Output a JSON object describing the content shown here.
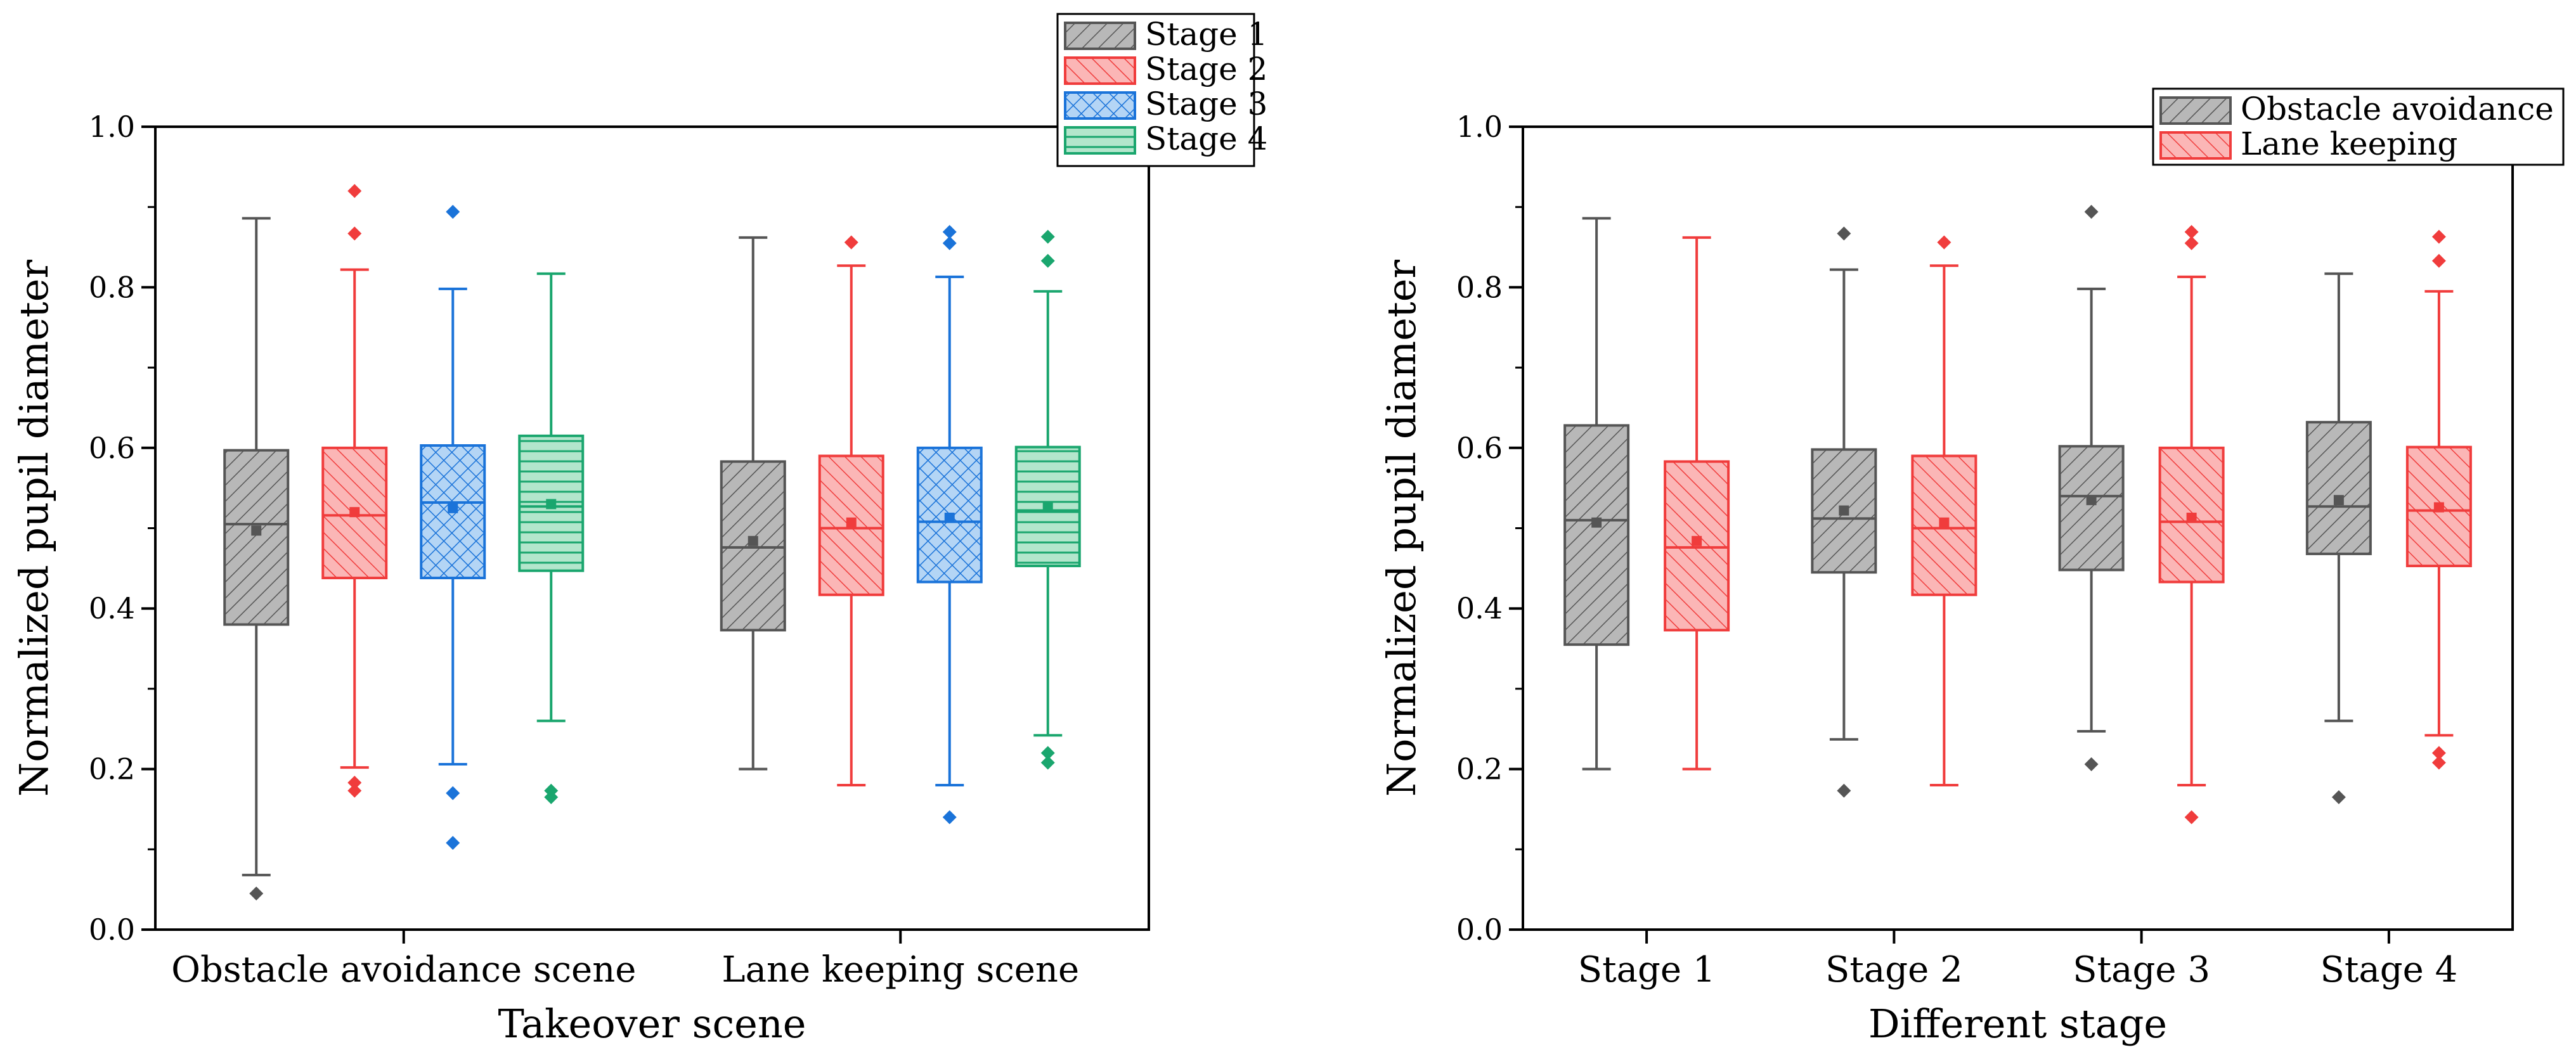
{
  "chart_data": [
    {
      "type": "box",
      "title": "",
      "xlabel": "Takeover scene",
      "ylabel": "Normalized pupil diameter",
      "ylim": [
        0.0,
        1.0
      ],
      "yticks": [
        "0.0",
        "0.2",
        "0.4",
        "0.6",
        "0.8",
        "1.0"
      ],
      "legend_position": "top-right",
      "categories": [
        "Obstacle avoidance scene",
        "Lane keeping scene"
      ],
      "series": [
        {
          "name": "Stage 1",
          "color": "#555555",
          "fill": "#b8b8b8",
          "pattern": "diag",
          "boxes": [
            {
              "whisker_low": 0.068,
              "q1": 0.38,
              "median": 0.505,
              "q3": 0.597,
              "whisker_high": 0.886,
              "mean": 0.497,
              "outliers": [
                0.045
              ]
            },
            {
              "whisker_low": 0.2,
              "q1": 0.373,
              "median": 0.476,
              "q3": 0.583,
              "whisker_high": 0.862,
              "mean": 0.484,
              "outliers": []
            }
          ]
        },
        {
          "name": "Stage 2",
          "color": "#f03c3c",
          "fill": "#fbb6b6",
          "pattern": "diag2",
          "boxes": [
            {
              "whisker_low": 0.202,
              "q1": 0.438,
              "median": 0.516,
              "q3": 0.6,
              "whisker_high": 0.822,
              "mean": 0.52,
              "outliers": [
                0.183,
                0.173,
                0.867,
                0.92
              ]
            },
            {
              "whisker_low": 0.18,
              "q1": 0.417,
              "median": 0.5,
              "q3": 0.59,
              "whisker_high": 0.827,
              "mean": 0.507,
              "outliers": [
                0.856
              ]
            }
          ]
        },
        {
          "name": "Stage 3",
          "color": "#1a73d9",
          "fill": "#b4d5f5",
          "pattern": "cross",
          "boxes": [
            {
              "whisker_low": 0.206,
              "q1": 0.438,
              "median": 0.532,
              "q3": 0.603,
              "whisker_high": 0.798,
              "mean": 0.525,
              "outliers": [
                0.17,
                0.108,
                0.894
              ]
            },
            {
              "whisker_low": 0.18,
              "q1": 0.433,
              "median": 0.508,
              "q3": 0.6,
              "whisker_high": 0.813,
              "mean": 0.513,
              "outliers": [
                0.14,
                0.855,
                0.869
              ]
            }
          ]
        },
        {
          "name": "Stage 4",
          "color": "#1aa66e",
          "fill": "#b3e6cc",
          "pattern": "horiz",
          "boxes": [
            {
              "whisker_low": 0.26,
              "q1": 0.447,
              "median": 0.527,
              "q3": 0.615,
              "whisker_high": 0.817,
              "mean": 0.53,
              "outliers": [
                0.173,
                0.165
              ]
            },
            {
              "whisker_low": 0.242,
              "q1": 0.453,
              "median": 0.522,
              "q3": 0.601,
              "whisker_high": 0.795,
              "mean": 0.526,
              "outliers": [
                0.22,
                0.208,
                0.833,
                0.863
              ]
            }
          ]
        }
      ]
    },
    {
      "type": "box",
      "title": "",
      "xlabel": "Different stage",
      "ylabel": "Normalized pupil diameter",
      "ylim": [
        0.0,
        1.0
      ],
      "yticks": [
        "0.0",
        "0.2",
        "0.4",
        "0.6",
        "0.8",
        "1.0"
      ],
      "legend_position": "top-right",
      "categories": [
        "Stage 1",
        "Stage 2",
        "Stage 3",
        "Stage 4"
      ],
      "series": [
        {
          "name": "Obstacle avoidance",
          "color": "#555555",
          "fill": "#b8b8b8",
          "pattern": "diag",
          "boxes": [
            {
              "whisker_low": 0.2,
              "q1": 0.355,
              "median": 0.51,
              "q3": 0.628,
              "whisker_high": 0.886,
              "mean": 0.507,
              "outliers": []
            },
            {
              "whisker_low": 0.237,
              "q1": 0.445,
              "median": 0.512,
              "q3": 0.598,
              "whisker_high": 0.822,
              "mean": 0.522,
              "outliers": [
                0.173,
                0.867
              ]
            },
            {
              "whisker_low": 0.247,
              "q1": 0.448,
              "median": 0.54,
              "q3": 0.602,
              "whisker_high": 0.798,
              "mean": 0.535,
              "outliers": [
                0.206,
                0.894
              ]
            },
            {
              "whisker_low": 0.26,
              "q1": 0.468,
              "median": 0.527,
              "q3": 0.632,
              "whisker_high": 0.817,
              "mean": 0.535,
              "outliers": [
                0.165
              ]
            }
          ]
        },
        {
          "name": "Lane keeping",
          "color": "#f03c3c",
          "fill": "#fbb6b6",
          "pattern": "diag2",
          "boxes": [
            {
              "whisker_low": 0.2,
              "q1": 0.373,
              "median": 0.476,
              "q3": 0.583,
              "whisker_high": 0.862,
              "mean": 0.484,
              "outliers": []
            },
            {
              "whisker_low": 0.18,
              "q1": 0.417,
              "median": 0.5,
              "q3": 0.59,
              "whisker_high": 0.827,
              "mean": 0.507,
              "outliers": [
                0.856
              ]
            },
            {
              "whisker_low": 0.18,
              "q1": 0.433,
              "median": 0.508,
              "q3": 0.6,
              "whisker_high": 0.813,
              "mean": 0.513,
              "outliers": [
                0.14,
                0.855,
                0.869
              ]
            },
            {
              "whisker_low": 0.242,
              "q1": 0.453,
              "median": 0.522,
              "q3": 0.601,
              "whisker_high": 0.795,
              "mean": 0.526,
              "outliers": [
                0.22,
                0.208,
                0.833,
                0.863
              ]
            }
          ]
        }
      ]
    }
  ]
}
